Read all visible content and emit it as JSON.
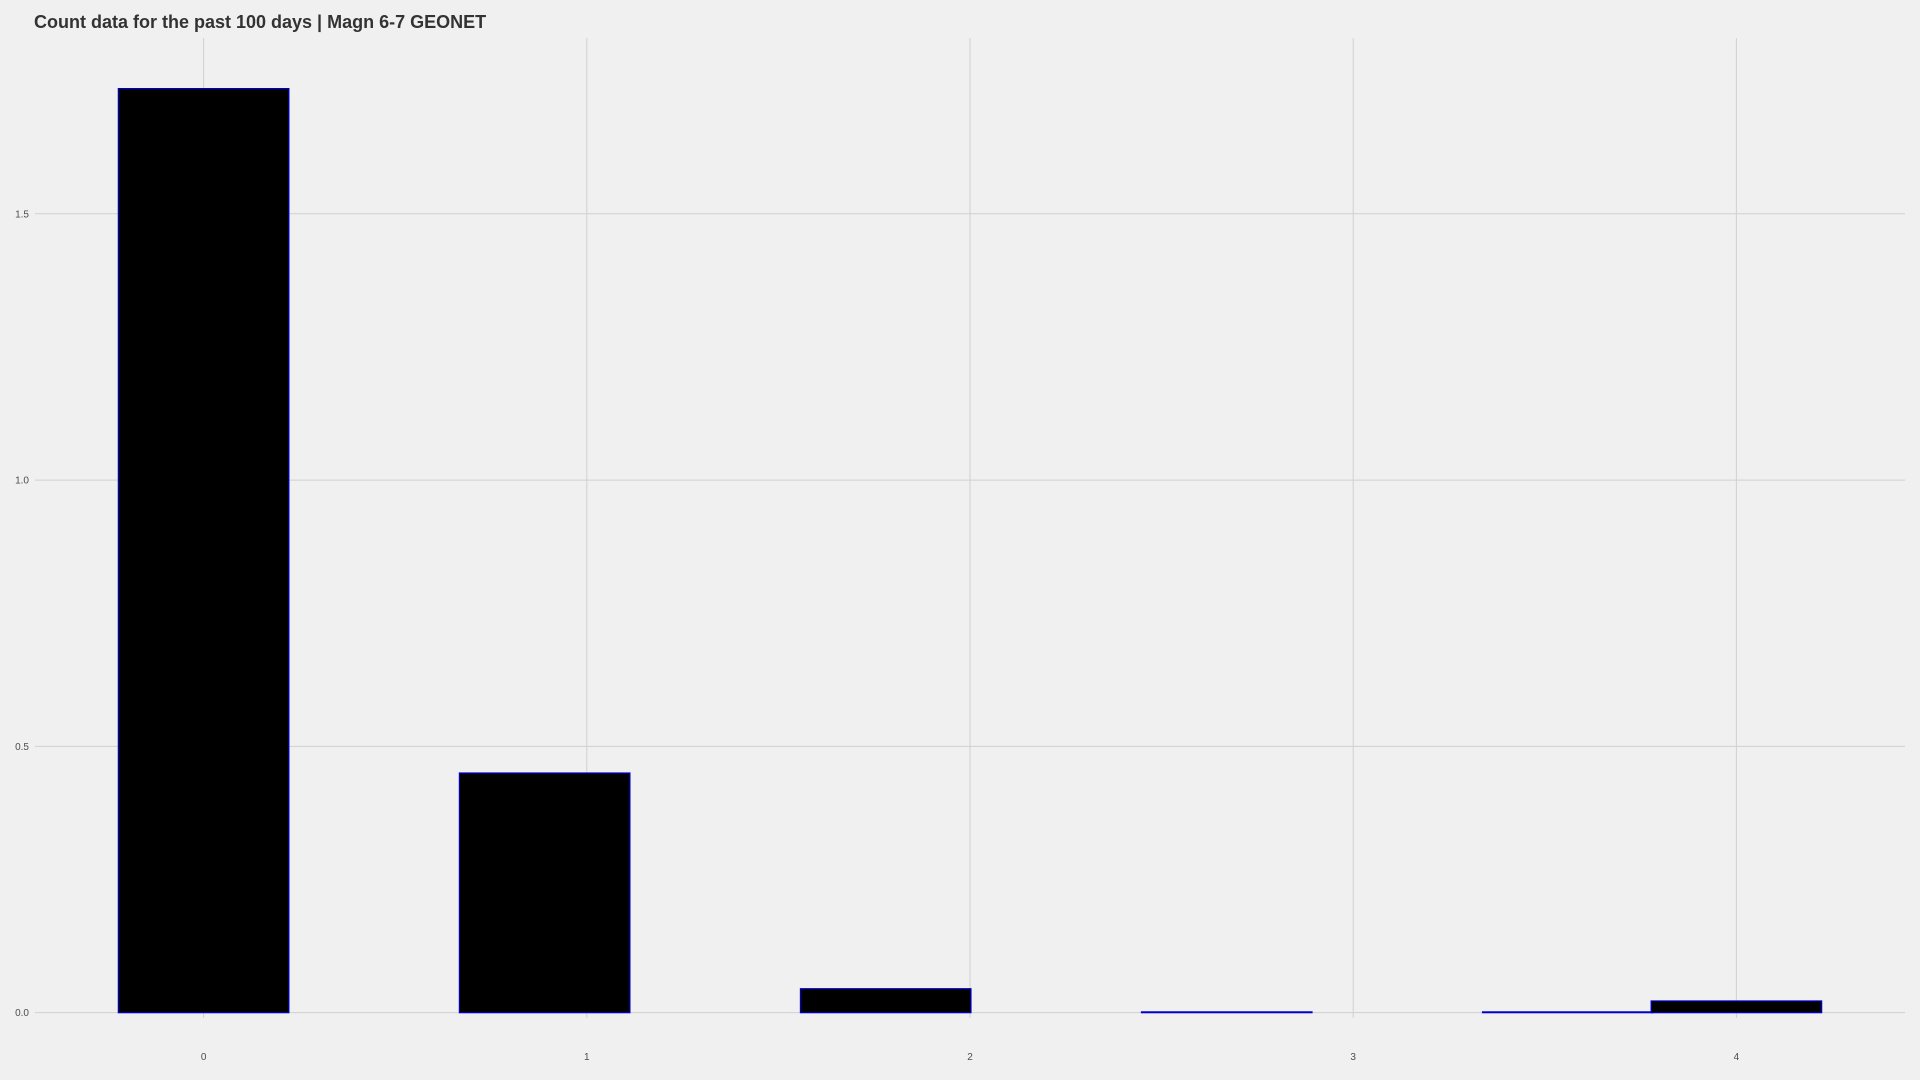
{
  "chart_data": {
    "type": "bar",
    "title": "Count data for the past 100 days | Magn 6-7 GEONET",
    "xlabel": "",
    "ylabel": "",
    "bars": [
      {
        "x": 0.0,
        "value": 1.735
      },
      {
        "x": 0.89,
        "value": 0.45
      },
      {
        "x": 1.78,
        "value": 0.045
      },
      {
        "x": 2.67,
        "value": 0.0
      },
      {
        "x": 3.56,
        "value": 0.0
      },
      {
        "x": 4.0,
        "value": 0.022
      }
    ],
    "bar_width": 0.445,
    "x_ticks": [
      "0",
      "1",
      "2",
      "3",
      "4"
    ],
    "y_ticks": [
      "0.0",
      "0.5",
      "1.0",
      "1.5"
    ],
    "xlim": [
      -0.44,
      4.44
    ],
    "ylim": [
      -0.01,
      1.83
    ],
    "grid": true,
    "colors": {
      "background": "#f0f0f0",
      "bar_fill": "#000000",
      "bar_outline": "#0000cc",
      "grid": "#d0d0d0",
      "title": "#333333",
      "tick_text": "#4d4d4d"
    }
  }
}
